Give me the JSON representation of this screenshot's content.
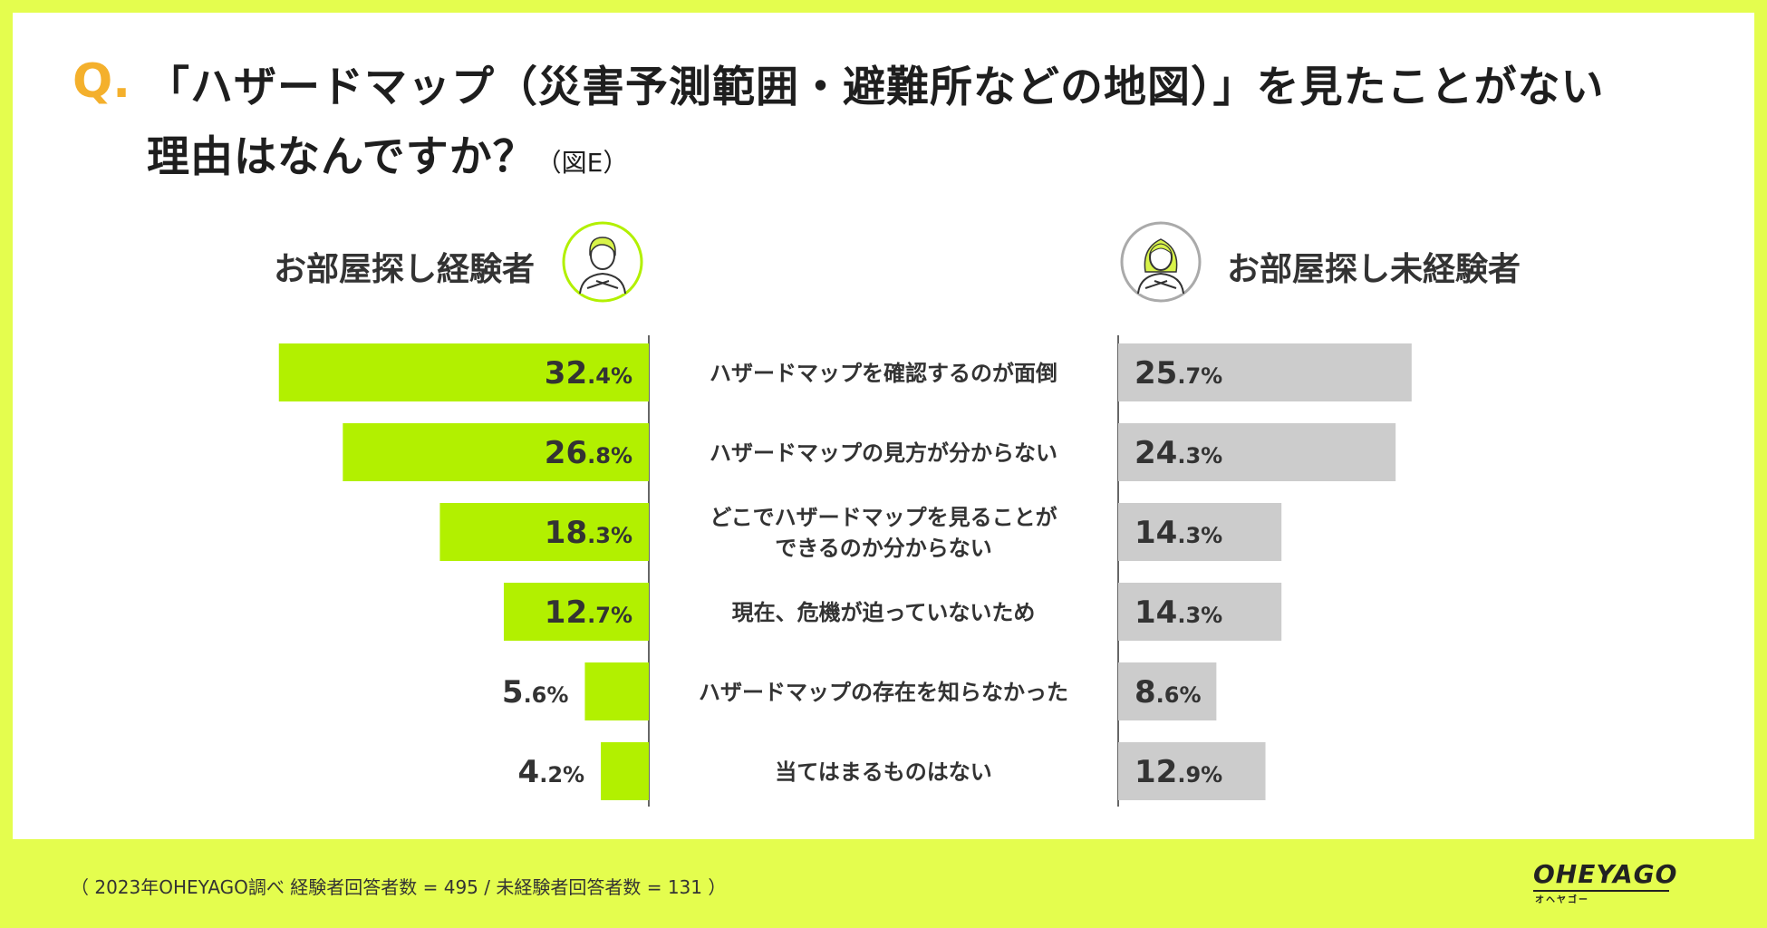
{
  "colors": {
    "background": "#e4fd4e",
    "left_bar": "#b2f000",
    "right_bar": "#cccccc",
    "accent": "#f4b02c"
  },
  "header": {
    "q_mark": "Q.",
    "title_line1": "「ハザードマップ（災害予測範囲・避難所などの地図）」を見たことがない",
    "title_line2": "理由はなんですか？",
    "figure_label": "（図E）"
  },
  "groups": {
    "left": {
      "label": "お部屋探し経験者",
      "avatar_icon": "male-avatar-icon"
    },
    "right": {
      "label": "お部屋探し未経験者",
      "avatar_icon": "female-avatar-icon"
    }
  },
  "chart_data": {
    "type": "bar",
    "orientation": "horizontal-butterfly",
    "unit": "%",
    "categories": [
      "ハザードマップを確認するのが面倒",
      "ハザードマップの見方が分からない",
      "どこでハザードマップを見ることが\nできるのか分からない",
      "現在、危機が迫っていないため",
      "ハザードマップの存在を知らなかった",
      "当てはまるものはない"
    ],
    "series": [
      {
        "name": "お部屋探し経験者",
        "values": [
          32.4,
          26.8,
          18.3,
          12.7,
          5.6,
          4.2
        ]
      },
      {
        "name": "お部屋探し未経験者",
        "values": [
          25.7,
          24.3,
          14.3,
          14.3,
          8.6,
          12.9
        ]
      }
    ],
    "xlim": [
      0,
      40
    ]
  },
  "footer": {
    "note": "（ 2023年OHEYAGO調べ 経験者回答者数 = 495 / 未経験者回答者数 = 131 ）"
  },
  "logo": {
    "main": "OHEYAGO",
    "sub": "オヘヤゴー"
  }
}
